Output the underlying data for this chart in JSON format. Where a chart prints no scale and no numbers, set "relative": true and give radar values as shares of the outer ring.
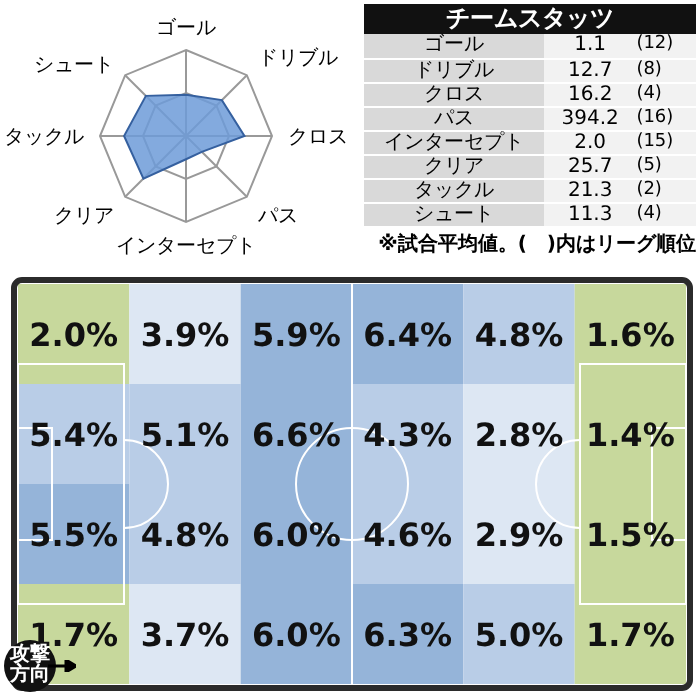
{
  "chart_data": [
    {
      "type": "radar",
      "categories": [
        "ゴール",
        "ドリブル",
        "クロス",
        "パス",
        "インターセプト",
        "クリア",
        "タックル",
        "シュート"
      ],
      "relative": true,
      "grid": true,
      "series": [
        {
          "color": "#6d9bd8",
          "values": [
            0.48,
            0.59,
            0.68,
            0.26,
            0.27,
            0.7,
            0.72,
            0.66
          ]
        }
      ]
    },
    {
      "type": "other",
      "title": "チームスタッツ",
      "categories": [
        "ゴール",
        "ドリブル",
        "クロス",
        "パス",
        "インターセプト",
        "クリア",
        "タックル",
        "シュート"
      ],
      "series": [
        {
          "values": [
            1.1,
            12.7,
            16.2,
            394.2,
            2.0,
            25.7,
            21.3,
            11.3
          ],
          "value_labels": [
            "1.1",
            "12.7",
            "16.2",
            "394.2",
            "2.0",
            "25.7",
            "21.3",
            "11.3"
          ]
        },
        {
          "values": [
            12,
            8,
            4,
            16,
            15,
            5,
            2,
            4
          ],
          "value_labels": [
            "(12)",
            "(8)",
            "(4)",
            "(16)",
            "(15)",
            "(5)",
            "(2)",
            "(4)"
          ]
        }
      ],
      "annotations": [
        "※試合平均値。(　)内はリーグ順位"
      ]
    },
    {
      "type": "heatmap",
      "categories": [
        null,
        null,
        null,
        null,
        null,
        null
      ],
      "y_categories": [
        null,
        null,
        null,
        null
      ],
      "cells": [
        [
          2.0,
          3.9,
          5.9,
          6.4,
          4.8,
          1.6
        ],
        [
          5.4,
          5.1,
          6.6,
          4.3,
          2.8,
          1.4
        ],
        [
          5.5,
          4.8,
          6.0,
          4.6,
          2.9,
          1.5
        ],
        [
          1.7,
          3.7,
          6.0,
          6.3,
          5.0,
          1.7
        ]
      ],
      "cell_labels": [
        [
          "2.0%",
          "3.9%",
          "5.9%",
          "6.4%",
          "4.8%",
          "1.6%"
        ],
        [
          "5.4%",
          "5.1%",
          "6.6%",
          "4.3%",
          "2.8%",
          "1.4%"
        ],
        [
          "5.5%",
          "4.8%",
          "6.0%",
          "4.6%",
          "2.9%",
          "1.5%"
        ],
        [
          "1.7%",
          "3.7%",
          "6.0%",
          "6.3%",
          "5.0%",
          "1.7%"
        ]
      ],
      "annotations": [
        "攻撃方向"
      ]
    }
  ]
}
